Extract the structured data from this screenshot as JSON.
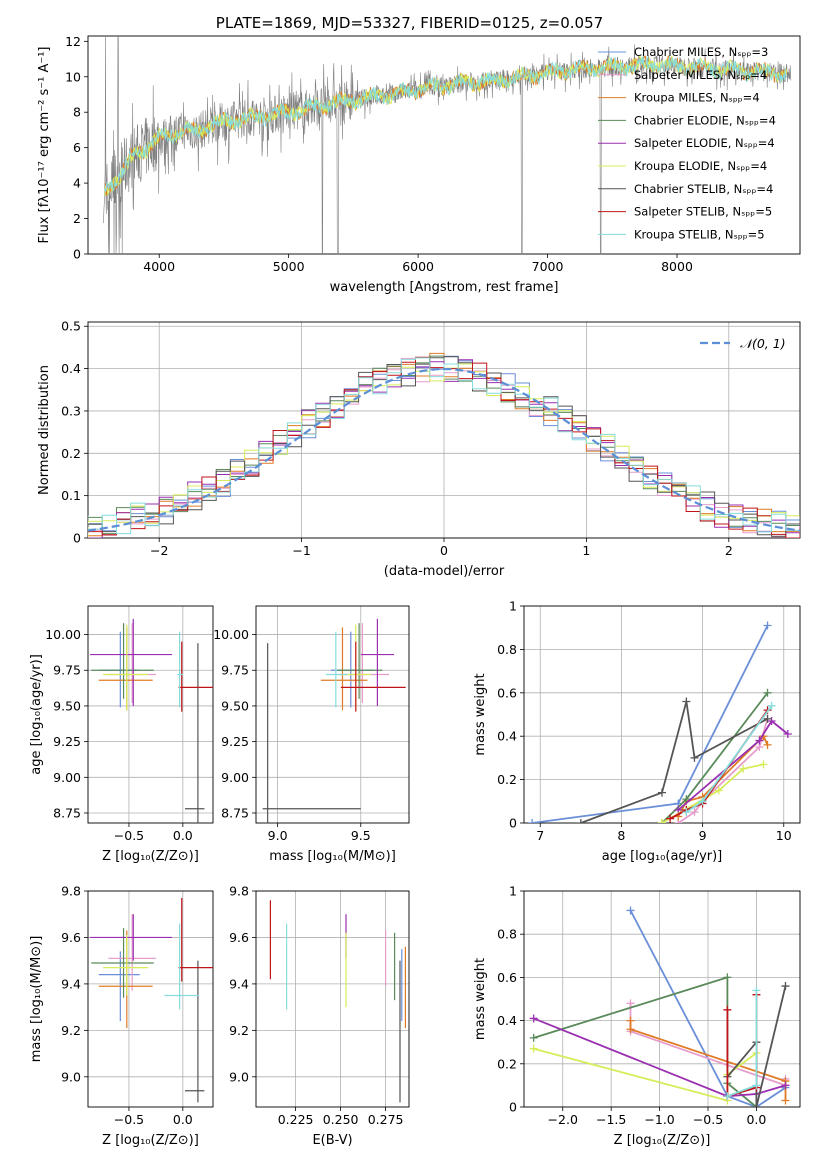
{
  "figure": {
    "title": "PLATE=1869, MJD=53327, FIBERID=0125, z=0.057"
  },
  "series_colors": [
    "#6a8fd8",
    "#e79dcb",
    "#e07b25",
    "#5a8a5a",
    "#9a2fb0",
    "#d8ec5a",
    "#555555",
    "#c0141a",
    "#87dcdc"
  ],
  "series_names": [
    "Chabrier MILES, Nₛₚₚ=3",
    "Salpeter MILES, Nₛₚₚ=4",
    "Kroupa MILES, Nₛₚₚ=4",
    "Chabrier ELODIE, Nₛₚₚ=4",
    "Salpeter ELODIE, Nₛₚₚ=4",
    "Kroupa ELODIE, Nₛₚₚ=4",
    "Chabrier STELIB, Nₛₚₚ=4",
    "Salpeter STELIB, Nₛₚₚ=5",
    "Kroupa STELIB, Nₛₚₚ=5"
  ],
  "chart_data": [
    {
      "id": "spectrum",
      "type": "line",
      "title": "PLATE=1869, MJD=53327, FIBERID=0125, z=0.057",
      "xlabel": "wavelength [Angstrom, rest frame]",
      "ylabel": "Flux [fλ10⁻¹⁷ erg cm⁻² s⁻¹ A⁻¹]",
      "xlim": [
        3450,
        8950
      ],
      "ylim": [
        0,
        12.3
      ],
      "xticks": [
        4000,
        5000,
        6000,
        7000,
        8000
      ],
      "yticks": [
        0,
        2,
        4,
        6,
        8,
        10,
        12
      ],
      "legend_position": "top-right",
      "legend": [
        "Chabrier MILES, Nₛₚₚ=3",
        "Salpeter MILES, Nₛₚₚ=4",
        "Kroupa MILES, Nₛₚₚ=4",
        "Chabrier ELODIE, Nₛₚₚ=4",
        "Salpeter ELODIE, Nₛₚₚ=4",
        "Kroupa ELODIE, Nₛₚₚ=4",
        "Chabrier STELIB, Nₛₚₚ=4",
        "Salpeter STELIB, Nₛₚₚ=5",
        "Kroupa STELIB, Nₛₚₚ=5"
      ],
      "data_trend": {
        "wavelength": [
          3580,
          3700,
          3800,
          3900,
          4000,
          4100,
          4200,
          4300,
          4400,
          4600,
          4800,
          5000,
          5200,
          5400,
          5600,
          5800,
          6000,
          6200,
          6400,
          6600,
          6800,
          7000,
          7200,
          7400,
          7600,
          7800,
          8000,
          8200,
          8400,
          8600,
          8800
        ],
        "flux": [
          3.5,
          4.5,
          5.5,
          6.0,
          6.5,
          6.8,
          7.0,
          6.9,
          7.3,
          7.6,
          7.8,
          8.0,
          8.3,
          8.6,
          8.8,
          9.0,
          9.3,
          9.5,
          9.7,
          9.8,
          10.0,
          10.2,
          10.4,
          10.5,
          10.6,
          10.7,
          10.6,
          10.5,
          10.4,
          10.3,
          10.2
        ]
      }
    },
    {
      "id": "residuals",
      "type": "line",
      "xlabel": "(data-model)/error",
      "ylabel": "Normed distribution",
      "xlim": [
        -2.5,
        2.5
      ],
      "ylim": [
        0,
        0.51
      ],
      "xticks": [
        -2,
        -1,
        0,
        1,
        2
      ],
      "yticks": [
        0.0,
        0.1,
        0.2,
        0.3,
        0.4,
        0.5
      ],
      "legend_position": "top-right",
      "reference_curve": "𝒩(0, 1)",
      "bin_width": 0.1,
      "histogram_envelope": {
        "x": [
          -2.5,
          -2.0,
          -1.5,
          -1.0,
          -0.5,
          0.0,
          0.5,
          1.0,
          1.5,
          2.0,
          2.5
        ],
        "y": [
          0.02,
          0.06,
          0.14,
          0.26,
          0.37,
          0.41,
          0.35,
          0.25,
          0.13,
          0.05,
          0.02
        ]
      }
    },
    {
      "id": "age-vs-Z",
      "type": "scatter",
      "xlabel": "Z [log₁₀(Z/Z⊙)]",
      "ylabel": "age  [log₁₀(age/yr)]",
      "xlim": [
        -0.88,
        0.28
      ],
      "ylim": [
        8.68,
        10.2
      ],
      "xticks": [
        -0.5,
        0.0
      ],
      "xtick_labels": [
        "−0.5",
        "0.0"
      ],
      "yticks": [
        8.75,
        9.0,
        9.25,
        9.5,
        9.75,
        10.0
      ],
      "ytick_labels": [
        "8.75",
        "9.00",
        "9.25",
        "9.50",
        "9.75",
        "10.00"
      ],
      "points": [
        {
          "x": -0.58,
          "y": 9.75,
          "xerr": [
            0.2,
            0.18
          ],
          "yerr": [
            0.26,
            0.27
          ]
        },
        {
          "x": -0.47,
          "y": 9.72,
          "xerr": [
            0.22,
            0.22
          ],
          "yerr": [
            0.2,
            0.36
          ]
        },
        {
          "x": -0.52,
          "y": 9.68,
          "xerr": [
            0.26,
            0.24
          ],
          "yerr": [
            0.21,
            0.37
          ]
        },
        {
          "x": -0.55,
          "y": 9.75,
          "xerr": [
            0.3,
            0.28
          ],
          "yerr": [
            0.2,
            0.33
          ]
        },
        {
          "x": -0.46,
          "y": 9.86,
          "xerr": [
            0.4,
            0.36
          ],
          "yerr": [
            0.36,
            0.25
          ]
        },
        {
          "x": -0.52,
          "y": 9.72,
          "xerr": [
            0.22,
            0.2
          ],
          "yerr": [
            0.25,
            0.35
          ]
        },
        {
          "x": 0.14,
          "y": 8.78,
          "xerr": [
            0.12,
            0.06
          ],
          "yerr": [
            0.3,
            1.16
          ]
        },
        {
          "x": -0.01,
          "y": 9.63,
          "xerr": [
            0.03,
            0.31
          ],
          "yerr": [
            0.17,
            0.32
          ]
        },
        {
          "x": -0.03,
          "y": 9.72,
          "xerr": [
            0.02,
            0.03
          ],
          "yerr": [
            0.23,
            0.3
          ]
        }
      ]
    },
    {
      "id": "age-vs-mass",
      "type": "scatter",
      "xlabel": "mass [log₁₀(M/M⊙)]",
      "ylabel": "",
      "xlim": [
        8.87,
        9.79
      ],
      "ylim": [
        8.68,
        10.2
      ],
      "xticks": [
        9.0,
        9.5
      ],
      "xtick_labels": [
        "9.0",
        "9.5"
      ],
      "yticks": [
        8.75,
        9.0,
        9.25,
        9.5,
        9.75,
        10.0
      ],
      "ytick_labels": [
        "8.75",
        "9.00",
        "9.25",
        "9.50",
        "9.75",
        "10.00"
      ],
      "points": [
        {
          "x": 9.44,
          "y": 9.75,
          "xerr": [
            0.12,
            0.14
          ],
          "yerr": [
            0.26,
            0.27
          ]
        },
        {
          "x": 9.51,
          "y": 9.72,
          "xerr": [
            0.14,
            0.16
          ],
          "yerr": [
            0.2,
            0.36
          ]
        },
        {
          "x": 9.39,
          "y": 9.68,
          "xerr": [
            0.13,
            0.15
          ],
          "yerr": [
            0.21,
            0.37
          ]
        },
        {
          "x": 9.49,
          "y": 9.75,
          "xerr": [
            0.13,
            0.14
          ],
          "yerr": [
            0.2,
            0.33
          ]
        },
        {
          "x": 9.6,
          "y": 9.86,
          "xerr": [
            0.1,
            0.1
          ],
          "yerr": [
            0.36,
            0.25
          ]
        },
        {
          "x": 9.47,
          "y": 9.72,
          "xerr": [
            0.1,
            0.09
          ],
          "yerr": [
            0.25,
            0.35
          ]
        },
        {
          "x": 8.94,
          "y": 8.78,
          "xerr": [
            0.03,
            0.56
          ],
          "yerr": [
            0.3,
            1.16
          ]
        },
        {
          "x": 9.47,
          "y": 9.63,
          "xerr": [
            0.09,
            0.3
          ],
          "yerr": [
            0.17,
            0.32
          ]
        },
        {
          "x": 9.35,
          "y": 9.72,
          "xerr": [
            0.06,
            0.07
          ],
          "yerr": [
            0.23,
            0.3
          ]
        }
      ]
    },
    {
      "id": "mass-weight-vs-age",
      "type": "line",
      "xlabel": "age  [log₁₀(age/yr)]",
      "ylabel": "mass weight",
      "xlim": [
        6.8,
        10.2
      ],
      "ylim": [
        0,
        1.0
      ],
      "xticks": [
        7,
        8,
        9,
        10
      ],
      "yticks": [
        0.0,
        0.2,
        0.4,
        0.6,
        0.8,
        1.0
      ],
      "series": [
        {
          "name": "Chabrier MILES",
          "x": [
            6.9,
            8.7,
            9.8
          ],
          "y": [
            0.0,
            0.09,
            0.91
          ]
        },
        {
          "name": "Salpeter MILES",
          "x": [
            8.7,
            8.9,
            9.0,
            9.7,
            9.8
          ],
          "y": [
            0.0,
            0.05,
            0.1,
            0.35,
            0.48
          ]
        },
        {
          "name": "Kroupa MILES",
          "x": [
            8.7,
            8.8,
            9.0,
            9.75,
            9.8
          ],
          "y": [
            0.03,
            0.1,
            0.12,
            0.4,
            0.36
          ]
        },
        {
          "name": "Chabrier ELODIE",
          "x": [
            8.5,
            8.8,
            9.8
          ],
          "y": [
            0.0,
            0.11,
            0.6
          ]
        },
        {
          "name": "Salpeter ELODIE",
          "x": [
            8.7,
            9.7,
            9.85,
            10.05
          ],
          "y": [
            0.06,
            0.38,
            0.47,
            0.41
          ]
        },
        {
          "name": "Kroupa ELODIE",
          "x": [
            8.5,
            9.2,
            9.5,
            9.75
          ],
          "y": [
            0.0,
            0.15,
            0.25,
            0.27
          ]
        },
        {
          "name": "Chabrier STELIB",
          "x": [
            7.5,
            8.5,
            8.8,
            8.9,
            9.8
          ],
          "y": [
            0.0,
            0.14,
            0.56,
            0.3,
            0.48
          ]
        },
        {
          "name": "Salpeter STELIB",
          "x": [
            8.6,
            8.8,
            9.0,
            9.8
          ],
          "y": [
            0.02,
            0.06,
            0.09,
            0.52
          ]
        },
        {
          "name": "Kroupa STELIB",
          "x": [
            8.8,
            9.0,
            9.85
          ],
          "y": [
            0.05,
            0.1,
            0.54
          ]
        }
      ]
    },
    {
      "id": "mass-vs-Z",
      "type": "scatter",
      "xlabel": "Z [log₁₀(Z/Z⊙)]",
      "ylabel": "mass [log₁₀(M/M⊙)]",
      "xlim": [
        -0.88,
        0.28
      ],
      "ylim": [
        8.87,
        9.8
      ],
      "xticks": [
        -0.5,
        0.0
      ],
      "xtick_labels": [
        "−0.5",
        "0.0"
      ],
      "yticks": [
        9.0,
        9.2,
        9.4,
        9.6,
        9.8
      ],
      "ytick_labels": [
        "9.0",
        "9.2",
        "9.4",
        "9.6",
        "9.8"
      ],
      "points": [
        {
          "x": -0.58,
          "y": 9.44,
          "xerr": [
            0.2,
            0.18
          ],
          "yerr": [
            0.2,
            0.1
          ]
        },
        {
          "x": -0.47,
          "y": 9.51,
          "xerr": [
            0.22,
            0.22
          ],
          "yerr": [
            0.14,
            0.19
          ]
        },
        {
          "x": -0.52,
          "y": 9.39,
          "xerr": [
            0.26,
            0.24
          ],
          "yerr": [
            0.18,
            0.24
          ]
        },
        {
          "x": -0.55,
          "y": 9.49,
          "xerr": [
            0.3,
            0.28
          ],
          "yerr": [
            0.15,
            0.15
          ]
        },
        {
          "x": -0.46,
          "y": 9.6,
          "xerr": [
            0.4,
            0.36
          ],
          "yerr": [
            0.1,
            0.1
          ]
        },
        {
          "x": -0.52,
          "y": 9.47,
          "xerr": [
            0.22,
            0.2
          ],
          "yerr": [
            0.12,
            0.14
          ]
        },
        {
          "x": 0.14,
          "y": 8.94,
          "xerr": [
            0.12,
            0.06
          ],
          "yerr": [
            0.05,
            0.56
          ]
        },
        {
          "x": -0.01,
          "y": 9.47,
          "xerr": [
            0.03,
            0.31
          ],
          "yerr": [
            0.06,
            0.3
          ]
        },
        {
          "x": -0.03,
          "y": 9.35,
          "xerr": [
            0.14,
            0.18
          ],
          "yerr": [
            0.06,
            0.31
          ]
        }
      ]
    },
    {
      "id": "mass-vs-EBV",
      "type": "scatter",
      "xlabel": "E(B-V)",
      "ylabel": "",
      "xlim": [
        0.203,
        0.288
      ],
      "ylim": [
        8.87,
        9.8
      ],
      "xticks": [
        0.225,
        0.25,
        0.275
      ],
      "xtick_labels": [
        "0.225",
        "0.250",
        "0.275"
      ],
      "yticks": [
        9.0,
        9.2,
        9.4,
        9.6,
        9.8
      ],
      "ytick_labels": [
        "9.0",
        "9.2",
        "9.4",
        "9.6",
        "9.8"
      ],
      "points": [
        {
          "x": 0.284,
          "y": 9.44,
          "xerr": [
            0,
            0
          ],
          "yerr": [
            0.2,
            0.11
          ]
        },
        {
          "x": 0.275,
          "y": 9.51,
          "xerr": [
            0,
            0
          ],
          "yerr": [
            0.12,
            0.12
          ]
        },
        {
          "x": 0.286,
          "y": 9.39,
          "xerr": [
            0,
            0
          ],
          "yerr": [
            0.18,
            0.17
          ]
        },
        {
          "x": 0.28,
          "y": 9.49,
          "xerr": [
            0,
            0
          ],
          "yerr": [
            0.16,
            0.13
          ]
        },
        {
          "x": 0.253,
          "y": 9.6,
          "xerr": [
            0,
            0
          ],
          "yerr": [
            0.09,
            0.1
          ]
        },
        {
          "x": 0.253,
          "y": 9.47,
          "xerr": [
            0,
            0
          ],
          "yerr": [
            0.17,
            0.15
          ]
        },
        {
          "x": 0.283,
          "y": 8.94,
          "xerr": [
            0,
            0
          ],
          "yerr": [
            0.05,
            0.56
          ]
        },
        {
          "x": 0.211,
          "y": 9.58,
          "xerr": [
            0,
            0
          ],
          "yerr": [
            0.16,
            0.18
          ]
        },
        {
          "x": 0.22,
          "y": 9.47,
          "xerr": [
            0,
            0
          ],
          "yerr": [
            0.18,
            0.19
          ]
        }
      ]
    },
    {
      "id": "mass-weight-vs-Z",
      "type": "line",
      "xlabel": "Z [log₁₀(Z/Z⊙)]",
      "ylabel": "mass weight",
      "xlim": [
        -2.4,
        0.45
      ],
      "ylim": [
        0,
        1.0
      ],
      "xticks": [
        -2.0,
        -1.5,
        -1.0,
        -0.5,
        0.0
      ],
      "xtick_labels": [
        "−2.0",
        "−1.5",
        "−1.0",
        "−0.5",
        "0.0"
      ],
      "yticks": [
        0.0,
        0.2,
        0.4,
        0.6,
        0.8,
        1.0
      ],
      "series": [
        {
          "name": "Chabrier MILES",
          "x": [
            -1.3,
            -0.3,
            0.0,
            0.3
          ],
          "y": [
            0.91,
            0.05,
            0.0,
            0.09
          ]
        },
        {
          "name": "Salpeter MILES",
          "x": [
            -1.3,
            -1.3,
            0.3,
            0.3
          ],
          "y": [
            0.48,
            0.35,
            0.1,
            0.13
          ]
        },
        {
          "name": "Kroupa MILES",
          "x": [
            -1.3,
            -1.3,
            0.3,
            0.3
          ],
          "y": [
            0.4,
            0.36,
            0.12,
            0.03
          ]
        },
        {
          "name": "Chabrier ELODIE",
          "x": [
            -2.3,
            -0.3,
            -0.3,
            0.0
          ],
          "y": [
            0.32,
            0.6,
            0.11,
            0.0
          ]
        },
        {
          "name": "Salpeter ELODIE",
          "x": [
            -2.3,
            -0.3,
            0.0,
            0.3
          ],
          "y": [
            0.41,
            0.05,
            0.06,
            0.1
          ]
        },
        {
          "name": "Kroupa ELODIE",
          "x": [
            -2.3,
            -0.3,
            -0.3,
            0.0
          ],
          "y": [
            0.27,
            0.03,
            0.15,
            0.25
          ]
        },
        {
          "name": "Chabrier STELIB",
          "x": [
            -0.3,
            0.0,
            0.0,
            0.3
          ],
          "y": [
            0.14,
            0.3,
            0.0,
            0.56
          ]
        },
        {
          "name": "Salpeter STELIB",
          "x": [
            -0.3,
            -0.3,
            0.0,
            0.0
          ],
          "y": [
            0.45,
            0.05,
            0.09,
            0.52
          ]
        },
        {
          "name": "Kroupa STELIB",
          "x": [
            -0.3,
            0.0,
            0.0
          ],
          "y": [
            0.05,
            0.1,
            0.54
          ]
        }
      ]
    }
  ]
}
